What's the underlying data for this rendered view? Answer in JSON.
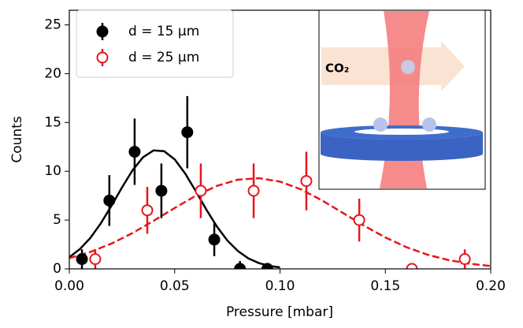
{
  "chart_data": {
    "type": "scatter",
    "xlabel": "Pressure [mbar]",
    "ylabel": "Counts",
    "xlim": [
      0,
      0.2
    ],
    "ylim": [
      0,
      26.5
    ],
    "xticks": [
      {
        "value": 0,
        "label": "0.00"
      },
      {
        "value": 0.05,
        "label": "0.05"
      },
      {
        "value": 0.1,
        "label": "0.10"
      },
      {
        "value": 0.15,
        "label": "0.15"
      },
      {
        "value": 0.2,
        "label": "0.20"
      }
    ],
    "yticks": [
      0,
      5,
      10,
      15,
      20,
      25
    ],
    "legend": "upper left",
    "inset_label": "CO₂",
    "series": [
      {
        "name": "d = 15 μm",
        "color": "#000000",
        "marker": "filled",
        "x": [
          0.006,
          0.019,
          0.031,
          0.0437,
          0.056,
          0.0688,
          0.081,
          0.094
        ],
        "values": [
          1,
          7,
          12,
          8,
          14,
          3,
          0,
          0
        ],
        "errors": [
          1,
          2.6,
          3.4,
          2.8,
          3.7,
          1.7,
          0.8,
          0.6
        ]
      },
      {
        "name": "d = 25 μm",
        "color": "#e8151b",
        "marker": "open",
        "x": [
          0.0123,
          0.037,
          0.0624,
          0.0875,
          0.1125,
          0.1376,
          0.1626,
          0.1877
        ],
        "values": [
          1,
          6,
          8,
          8,
          9,
          5,
          0,
          1
        ],
        "errors": [
          1,
          2.4,
          2.8,
          2.8,
          3,
          2.2,
          0.5,
          1
        ]
      }
    ],
    "fits": [
      {
        "color": "#000000",
        "style": "solid",
        "x": [
          0,
          0.005,
          0.01,
          0.015,
          0.02,
          0.025,
          0.03,
          0.035,
          0.04,
          0.045,
          0.05,
          0.055,
          0.06,
          0.065,
          0.07,
          0.075,
          0.08,
          0.085,
          0.09,
          0.095,
          0.1
        ],
        "values": [
          1.2,
          2.02,
          3.17,
          4.68,
          6.46,
          8.34,
          10.1,
          11.44,
          12.14,
          12.06,
          11.22,
          9.77,
          7.97,
          6.09,
          4.35,
          2.91,
          1.83,
          1.07,
          0.59,
          0.3,
          0.15
        ]
      },
      {
        "color": "#e8151b",
        "style": "dashed",
        "x": [
          0,
          0.01,
          0.02,
          0.03,
          0.04,
          0.05,
          0.06,
          0.07,
          0.08,
          0.09,
          0.1,
          0.11,
          0.12,
          0.13,
          0.14,
          0.15,
          0.16,
          0.17,
          0.18,
          0.19,
          0.2
        ],
        "values": [
          1.1,
          1.73,
          2.59,
          3.67,
          4.92,
          6.24,
          7.49,
          8.5,
          9.14,
          9.29,
          8.94,
          8.14,
          7.01,
          5.71,
          4.41,
          3.22,
          2.22,
          1.45,
          0.9,
          0.53,
          0.29
        ]
      }
    ]
  }
}
